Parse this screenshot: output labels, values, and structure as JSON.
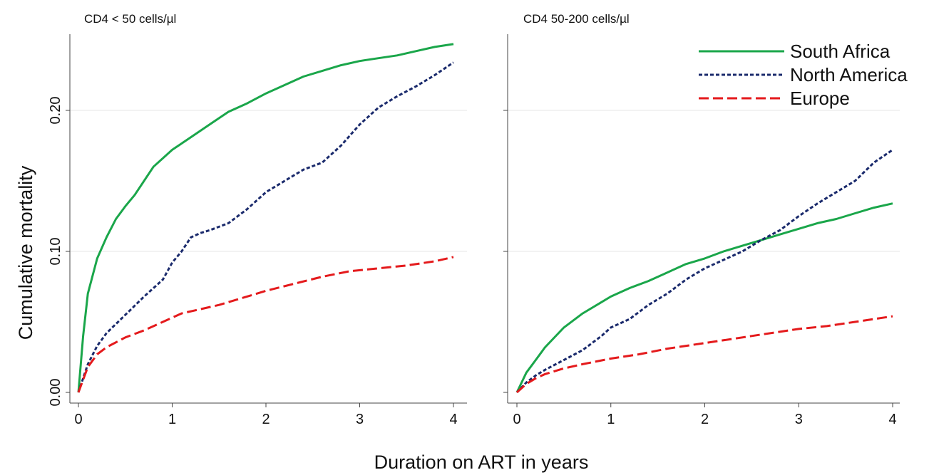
{
  "chart_data": [
    {
      "type": "line",
      "title": "CD4 < 50 cells/µl",
      "ylabel": "Cumulative mortality",
      "xlabel": "Duration on ART in years",
      "xlim": [
        0,
        4
      ],
      "ylim": [
        0,
        0.25
      ],
      "xticks": [
        0,
        1,
        2,
        3,
        4
      ],
      "yticks": [
        0.0,
        0.1,
        0.2
      ],
      "ytick_labels": [
        "0.00",
        "0.10",
        "0.20"
      ],
      "grid": "horizontal at y ticks",
      "series": [
        {
          "name": "South Africa",
          "color": "#1aa64a",
          "style": "solid",
          "x": [
            0,
            0.05,
            0.1,
            0.2,
            0.3,
            0.4,
            0.5,
            0.6,
            0.8,
            1.0,
            1.2,
            1.4,
            1.6,
            1.8,
            2.0,
            2.2,
            2.4,
            2.6,
            2.8,
            3.0,
            3.2,
            3.4,
            3.6,
            3.8,
            4.0
          ],
          "y": [
            0,
            0.04,
            0.07,
            0.095,
            0.11,
            0.123,
            0.132,
            0.14,
            0.16,
            0.172,
            0.181,
            0.19,
            0.199,
            0.205,
            0.212,
            0.218,
            0.224,
            0.228,
            0.232,
            0.235,
            0.237,
            0.239,
            0.242,
            0.245,
            0.247
          ]
        },
        {
          "name": "North America",
          "color": "#1a2a6c",
          "style": "short-dash",
          "x": [
            0,
            0.1,
            0.2,
            0.3,
            0.5,
            0.7,
            0.9,
            1.0,
            1.1,
            1.2,
            1.3,
            1.4,
            1.6,
            1.8,
            2.0,
            2.2,
            2.4,
            2.6,
            2.8,
            3.0,
            3.2,
            3.4,
            3.6,
            3.8,
            4.0
          ],
          "y": [
            0,
            0.02,
            0.033,
            0.042,
            0.055,
            0.068,
            0.08,
            0.092,
            0.1,
            0.11,
            0.113,
            0.115,
            0.12,
            0.13,
            0.142,
            0.15,
            0.158,
            0.163,
            0.175,
            0.19,
            0.202,
            0.21,
            0.217,
            0.225,
            0.234
          ]
        },
        {
          "name": "Europe",
          "color": "#e41a1c",
          "style": "long-dash",
          "x": [
            0,
            0.1,
            0.2,
            0.3,
            0.5,
            0.7,
            0.9,
            1.1,
            1.3,
            1.5,
            1.7,
            2.0,
            2.3,
            2.6,
            2.9,
            3.2,
            3.5,
            3.8,
            4.0
          ],
          "y": [
            0,
            0.018,
            0.027,
            0.032,
            0.039,
            0.044,
            0.05,
            0.056,
            0.059,
            0.062,
            0.066,
            0.072,
            0.077,
            0.082,
            0.086,
            0.088,
            0.09,
            0.093,
            0.096
          ]
        }
      ]
    },
    {
      "type": "line",
      "title": "CD4 50-200 cells/µl",
      "xlabel": "Duration on ART in years",
      "xlim": [
        0,
        4
      ],
      "ylim": [
        0,
        0.25
      ],
      "xticks": [
        0,
        1,
        2,
        3,
        4
      ],
      "yticks": [
        0.0,
        0.1,
        0.2
      ],
      "grid": "horizontal at y ticks",
      "legend": "top-right",
      "series": [
        {
          "name": "South Africa",
          "color": "#1aa64a",
          "style": "solid",
          "x": [
            0,
            0.1,
            0.2,
            0.3,
            0.5,
            0.7,
            0.9,
            1.0,
            1.2,
            1.4,
            1.6,
            1.8,
            2.0,
            2.2,
            2.4,
            2.6,
            2.8,
            3.0,
            3.2,
            3.4,
            3.6,
            3.8,
            4.0
          ],
          "y": [
            0,
            0.014,
            0.023,
            0.032,
            0.046,
            0.056,
            0.064,
            0.068,
            0.074,
            0.079,
            0.085,
            0.091,
            0.095,
            0.1,
            0.104,
            0.108,
            0.112,
            0.116,
            0.12,
            0.123,
            0.127,
            0.131,
            0.134
          ]
        },
        {
          "name": "North America",
          "color": "#1a2a6c",
          "style": "short-dash",
          "x": [
            0,
            0.1,
            0.2,
            0.3,
            0.5,
            0.7,
            0.9,
            1.0,
            1.2,
            1.4,
            1.6,
            1.8,
            2.0,
            2.2,
            2.4,
            2.6,
            2.8,
            3.0,
            3.2,
            3.4,
            3.6,
            3.8,
            4.0
          ],
          "y": [
            0,
            0.007,
            0.012,
            0.016,
            0.023,
            0.03,
            0.04,
            0.046,
            0.052,
            0.062,
            0.07,
            0.08,
            0.088,
            0.094,
            0.1,
            0.108,
            0.115,
            0.125,
            0.134,
            0.142,
            0.15,
            0.163,
            0.172
          ]
        },
        {
          "name": "Europe",
          "color": "#e41a1c",
          "style": "long-dash",
          "x": [
            0,
            0.1,
            0.2,
            0.3,
            0.5,
            0.7,
            1.0,
            1.3,
            1.6,
            2.0,
            2.3,
            2.6,
            3.0,
            3.3,
            3.6,
            4.0
          ],
          "y": [
            0,
            0.006,
            0.01,
            0.013,
            0.017,
            0.02,
            0.024,
            0.027,
            0.031,
            0.035,
            0.038,
            0.041,
            0.045,
            0.047,
            0.05,
            0.054
          ]
        }
      ]
    }
  ]
}
